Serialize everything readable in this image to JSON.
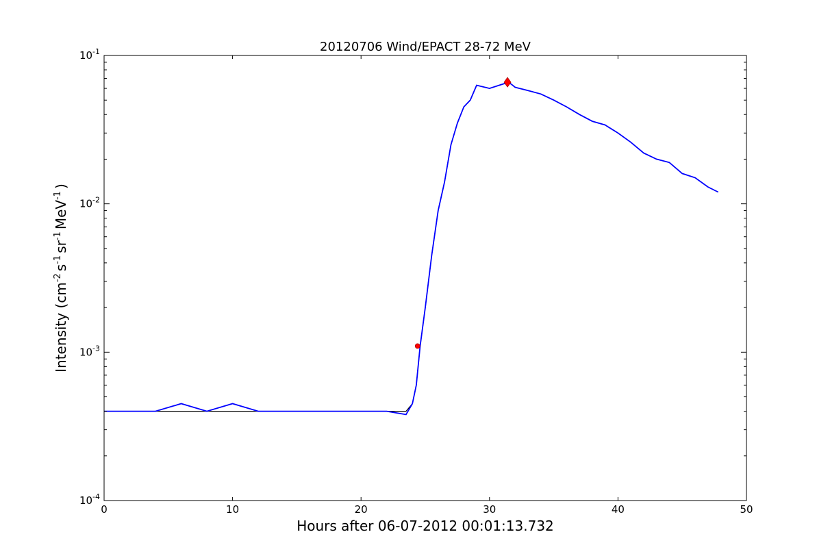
{
  "chart_data": {
    "type": "line",
    "title": "20120706 Wind/EPACT 28-72 MeV",
    "xlabel": "Hours after 06-07-2012 00:01:13.732",
    "ylabel": {
      "text": "Intensity (cm",
      "sup1": "-2",
      "mid1": "s",
      "sup2": "-1",
      "mid2": "sr",
      "sup3": "-1",
      "mid3": "MeV",
      "sup4": "-1",
      "end": ")"
    },
    "xlim": [
      0,
      50
    ],
    "ylim": [
      0.0001,
      0.1
    ],
    "yscale": "log",
    "xticks": [
      0,
      10,
      20,
      30,
      40,
      50
    ],
    "xtick_labels": [
      "0",
      "10",
      "20",
      "30",
      "40",
      "50"
    ],
    "yticks": [
      0.0001,
      0.001,
      0.01,
      0.1
    ],
    "ytick_labels": [
      {
        "base": "10",
        "exp": "-4"
      },
      {
        "base": "10",
        "exp": "-3"
      },
      {
        "base": "10",
        "exp": "-2"
      },
      {
        "base": "10",
        "exp": "-1"
      }
    ],
    "grid": false,
    "series": [
      {
        "color": "#000000",
        "style": "raw intensity",
        "x": [
          0,
          2,
          4,
          6,
          8,
          10,
          12,
          14,
          16,
          18,
          20,
          22,
          23.5,
          24.0,
          24.3,
          24.6,
          25.0,
          25.5,
          26.0,
          26.5,
          27.0,
          27.5,
          28.0,
          28.5,
          29.0,
          30.0,
          31.0,
          31.5,
          32.0,
          33.0,
          34.0,
          35.0,
          36.0,
          37.0,
          38.0,
          39.0,
          40.0,
          41.0,
          42.0,
          43.0,
          44.0,
          45.0,
          46.0,
          47.0,
          47.8
        ],
        "y": [
          0.0004,
          0.0004,
          0.0004,
          0.0004,
          0.0004,
          0.0004,
          0.0004,
          0.0004,
          0.0004,
          0.0004,
          0.0004,
          0.0004,
          0.0004,
          0.00045,
          0.0006,
          0.0011,
          0.002,
          0.0045,
          0.009,
          0.014,
          0.025,
          0.035,
          0.045,
          0.05,
          0.063,
          0.06,
          0.064,
          0.066,
          0.061,
          0.058,
          0.055,
          0.05,
          0.045,
          0.04,
          0.036,
          0.034,
          0.03,
          0.026,
          0.022,
          0.02,
          0.019,
          0.016,
          0.015,
          0.013,
          0.012
        ]
      },
      {
        "color": "#0000ff",
        "style": "smoothed intensity",
        "x": [
          0,
          2,
          4,
          6,
          8,
          10,
          12,
          14,
          16,
          18,
          20,
          22,
          23.5,
          24.0,
          24.3,
          24.6,
          25.0,
          25.5,
          26.0,
          26.5,
          27.0,
          27.5,
          28.0,
          28.5,
          29.0,
          30.0,
          31.0,
          31.5,
          32.0,
          33.0,
          34.0,
          35.0,
          36.0,
          37.0,
          38.0,
          39.0,
          40.0,
          41.0,
          42.0,
          43.0,
          44.0,
          45.0,
          46.0,
          47.0,
          47.8
        ],
        "y": [
          0.0004,
          0.0004,
          0.0004,
          0.00045,
          0.0004,
          0.00045,
          0.0004,
          0.0004,
          0.0004,
          0.0004,
          0.0004,
          0.0004,
          0.00038,
          0.00045,
          0.0006,
          0.0011,
          0.002,
          0.0045,
          0.009,
          0.014,
          0.025,
          0.035,
          0.045,
          0.05,
          0.063,
          0.06,
          0.064,
          0.066,
          0.061,
          0.058,
          0.055,
          0.05,
          0.045,
          0.04,
          0.036,
          0.034,
          0.03,
          0.026,
          0.022,
          0.02,
          0.019,
          0.016,
          0.015,
          0.013,
          0.012
        ]
      }
    ],
    "markers": [
      {
        "x": 24.4,
        "y": 0.0011,
        "color": "#ff0000"
      },
      {
        "x": 31.4,
        "y": 0.066,
        "color": "#ff0000"
      }
    ]
  }
}
